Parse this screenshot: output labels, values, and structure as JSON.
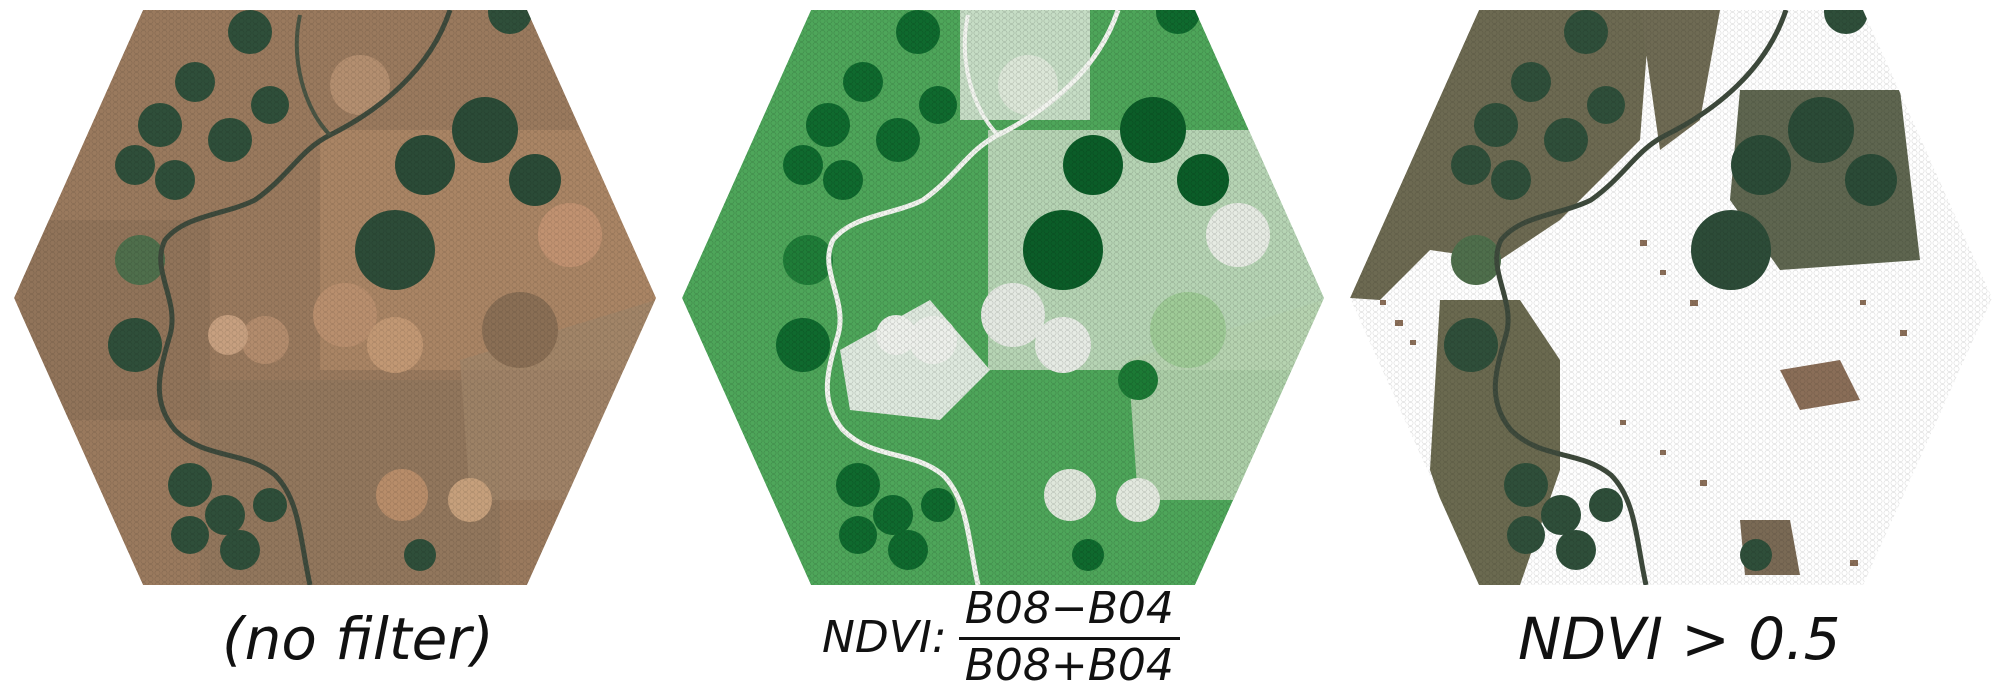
{
  "figure": {
    "panels": [
      {
        "id": "no-filter",
        "caption": "(no filter)",
        "palette": {
          "background": "#9a7a5e",
          "field_dark": "#2f4f3a",
          "field_mid": "#4f6f4c",
          "field_light": "#b98f6e",
          "river": "#3e4a3c"
        }
      },
      {
        "id": "ndvi",
        "caption_prefix": "NDVI:",
        "numerator": "B08−B04",
        "denominator": "B08+B04",
        "palette": {
          "background": "#4ea65a",
          "field_dark": "#0b5d28",
          "field_mid": "#3d9b4f",
          "field_light": "#e4e9e2",
          "river": "#f2f5ef"
        }
      },
      {
        "id": "ndvi-threshold",
        "caption": "NDVI > 0.5",
        "palette": {
          "background": "#ffffff",
          "field_dark": "#2f4f3a",
          "field_mid": "#4f6f4c",
          "field_light": "#ffffff",
          "river": "#3e4a3c",
          "speckle": "#8a6e58"
        }
      }
    ]
  }
}
